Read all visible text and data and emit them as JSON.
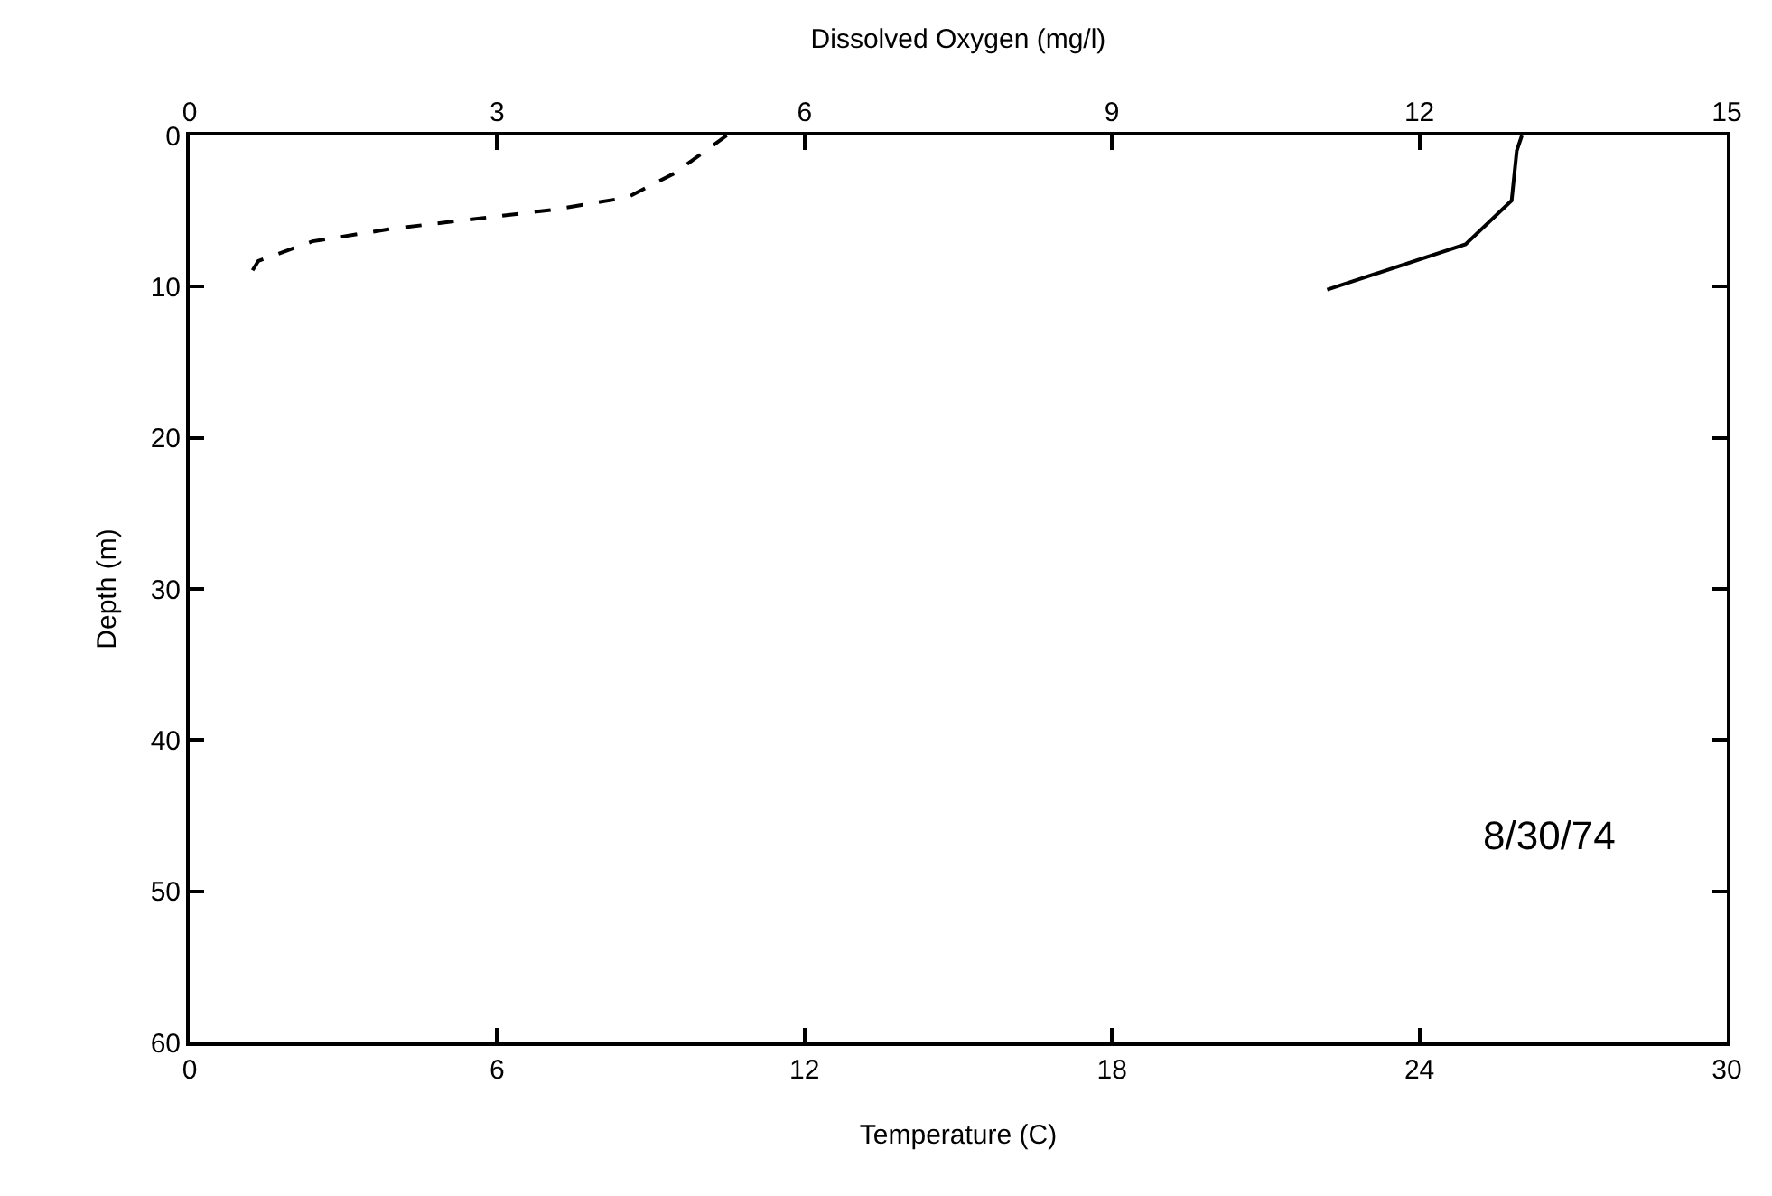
{
  "chart_data": {
    "type": "line",
    "xlabel": "Temperature (C)",
    "x2label": "Dissolved Oxygen (mg/l)",
    "ylabel": "Depth (m)",
    "xlim": [
      0,
      30
    ],
    "xticks": [
      0,
      6,
      12,
      18,
      24,
      30
    ],
    "x2lim": [
      0,
      15
    ],
    "x2ticks": [
      0,
      3,
      6,
      9,
      12,
      15
    ],
    "ylim": [
      60,
      0
    ],
    "yticks": [
      0,
      10,
      20,
      30,
      40,
      50,
      60
    ],
    "grid": false,
    "marker": "none",
    "annotations": [
      "8/30/74"
    ],
    "series": [
      {
        "color": "#000000",
        "line_style": "solid",
        "x": [
          26.0,
          25.9,
          25.8,
          24.9,
          22.2
        ],
        "values": [
          0,
          1,
          4.3,
          7.2,
          10.2
        ]
      },
      {
        "color": "#000000",
        "line_style": "dashed",
        "axis": "x2",
        "x": [
          5.24,
          4.73,
          4.27,
          3.56,
          2.68,
          1.94,
          1.2,
          0.67,
          0.58
        ],
        "values": [
          0,
          2.5,
          4.1,
          4.9,
          5.6,
          6.2,
          7.0,
          8.3,
          9.3
        ]
      }
    ]
  }
}
